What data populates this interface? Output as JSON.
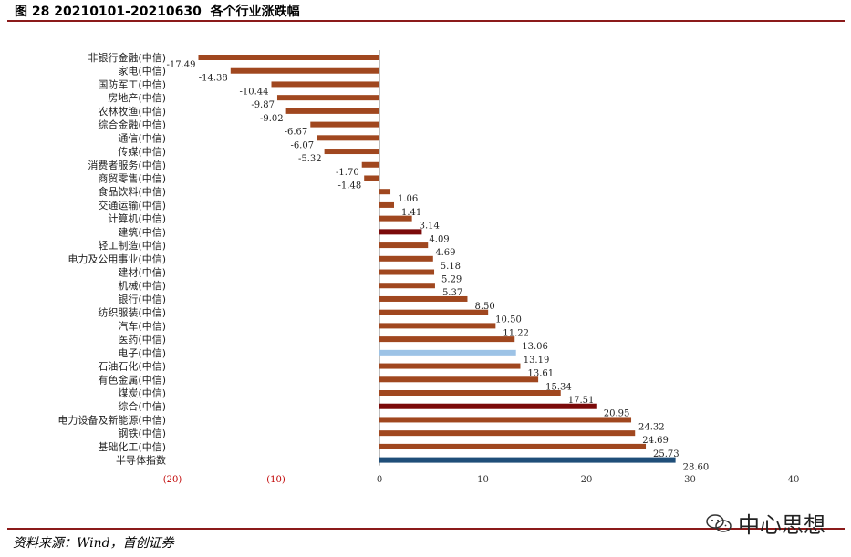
{
  "header": {
    "title": "图 28 20210101-20210630  各个行业涨跌幅"
  },
  "footer": {
    "source": "资料来源：Wind，首创证券",
    "watermark": "中心思想"
  },
  "icons": {
    "watermark": "wechat-icon"
  },
  "colors": {
    "default_bar": "#a0471f",
    "highlight_dark_red": "#7b0a0a",
    "highlight_light_blue": "#9dc3e6",
    "highlight_navy": "#1f4e79",
    "negative_tick": "#c00000",
    "rule": "#8b1a1a"
  },
  "chart_data": {
    "type": "bar",
    "orientation": "horizontal",
    "title": "",
    "xlabel": "",
    "ylabel": "",
    "xlim": [
      -20,
      40
    ],
    "xticks": [
      -20,
      -10,
      0,
      10,
      20,
      30,
      40
    ],
    "xtick_labels": [
      "(20)",
      "(10)",
      "0",
      "10",
      "20",
      "30",
      "40"
    ],
    "grid": false,
    "categories": [
      "非银行金融(中信)",
      "家电(中信)",
      "国防军工(中信)",
      "房地产(中信)",
      "农林牧渔(中信)",
      "综合金融(中信)",
      "通信(中信)",
      "传媒(中信)",
      "消费者服务(中信)",
      "商贸零售(中信)",
      "食品饮料(中信)",
      "交通运输(中信)",
      "计算机(中信)",
      "建筑(中信)",
      "轻工制造(中信)",
      "电力及公用事业(中信)",
      "建材(中信)",
      "机械(中信)",
      "银行(中信)",
      "纺织服装(中信)",
      "汽车(中信)",
      "医药(中信)",
      "电子(中信)",
      "石油石化(中信)",
      "有色金属(中信)",
      "煤炭(中信)",
      "综合(中信)",
      "电力设备及新能源(中信)",
      "钢铁(中信)",
      "基础化工(中信)",
      "半导体指数"
    ],
    "values": [
      -17.49,
      -14.38,
      -10.44,
      -9.87,
      -9.02,
      -6.67,
      -6.07,
      -5.32,
      -1.7,
      -1.48,
      1.06,
      1.41,
      3.14,
      4.09,
      4.69,
      5.18,
      5.29,
      5.37,
      8.5,
      10.5,
      11.22,
      13.06,
      13.19,
      13.61,
      15.34,
      17.51,
      20.95,
      24.32,
      24.69,
      25.73,
      28.6
    ],
    "value_labels": [
      "-17.49",
      "-14.38",
      "-10.44",
      "-9.87",
      "-9.02",
      "-6.67",
      "-6.07",
      "-5.32",
      "-1.70",
      "-1.48",
      "1.06",
      "1.41",
      "3.14",
      "4.09",
      "4.69",
      "5.18",
      "5.29",
      "5.37",
      "8.50",
      "10.50",
      "11.22",
      "13.06",
      "13.19",
      "13.61",
      "15.34",
      "17.51",
      "20.95",
      "24.32",
      "24.69",
      "25.73",
      "28.60"
    ],
    "highlights": {
      "建筑(中信)": "highlight_dark_red",
      "电子(中信)": "highlight_light_blue",
      "综合(中信)": "highlight_dark_red",
      "半导体指数": "highlight_navy"
    }
  }
}
